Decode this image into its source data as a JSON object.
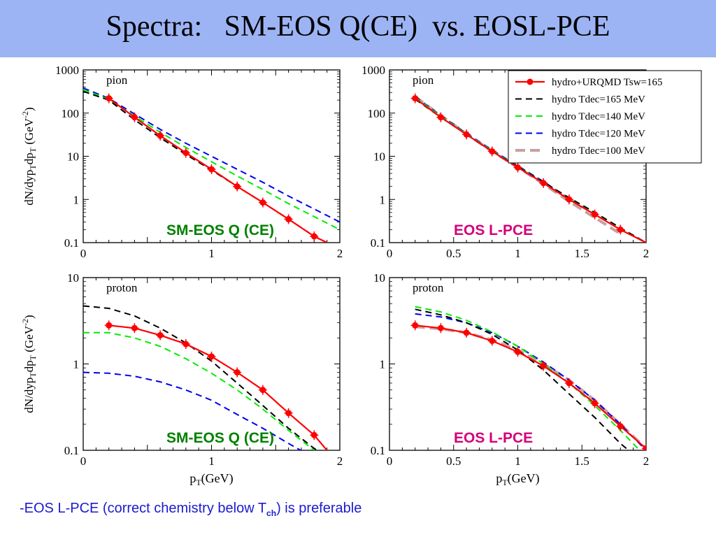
{
  "slide": {
    "title": "Spectra:   SM-EOS Q(CE)  vs. EOSL-PCE",
    "footer_prefix": "-EOS L-PCE (correct chemistry below T",
    "footer_sub": "ch",
    "footer_suffix": ") is preferable"
  },
  "colors": {
    "title_bg": "#9db4f4",
    "footer_text": "#1a1ad0",
    "sm_label": "#008000",
    "pce_label": "#d4007a",
    "hydro_urqmd": "#ff0000",
    "tdec165": "#000000",
    "tdec140": "#00ee00",
    "tdec120": "#0000ee",
    "tdec100": "#c8a0a0"
  },
  "legend": {
    "placement": "top-right",
    "entries": [
      "hydro+URQMD Tsw=165",
      "hydro Tdec=165 MeV",
      "hydro Tdec=140 MeV",
      "hydro Tdec=120 MeV",
      "hydro Tdec=100 MeV"
    ]
  },
  "chart_data": [
    {
      "type": "line",
      "id": "pion-smeos",
      "annotation": "pion",
      "label": "SM-EOS Q (CE)",
      "label_color": "sm",
      "ylabel": "dN/dyp_T dp_T (GeV^-2)",
      "xlabel": "",
      "xlim": [
        0,
        2
      ],
      "ylim": [
        0.1,
        1000
      ],
      "yscale": "log",
      "xticks": [
        "0",
        "1",
        "2"
      ],
      "yticks": [
        "0.1",
        "1",
        "10",
        "100",
        "1000"
      ],
      "series": [
        {
          "name": "hydro+URQMD Tsw=165",
          "style": "hydro_urqmd",
          "markers": true,
          "x": [
            0.2,
            0.4,
            0.6,
            0.8,
            1.0,
            1.2,
            1.4,
            1.6,
            1.8,
            1.9
          ],
          "y": [
            220,
            80,
            30,
            12,
            5,
            2,
            0.85,
            0.35,
            0.14,
            0.1
          ],
          "marker_x": [
            0.2,
            0.4,
            0.6,
            0.8,
            1.0,
            1.2,
            1.4,
            1.6,
            1.8
          ]
        },
        {
          "name": "hydro Tdec=165 MeV",
          "style": "tdec165",
          "x": [
            0,
            0.2,
            0.4,
            0.6,
            0.8,
            1.0,
            1.2,
            1.4,
            1.6,
            1.8,
            1.9
          ],
          "y": [
            320,
            200,
            70,
            27,
            11,
            4.8,
            2.0,
            0.85,
            0.35,
            0.14,
            0.1
          ]
        },
        {
          "name": "hydro Tdec=140 MeV",
          "style": "tdec140",
          "x": [
            0,
            0.2,
            0.4,
            0.6,
            0.8,
            1.0,
            1.2,
            1.4,
            1.6,
            1.8,
            2.0
          ],
          "y": [
            350,
            210,
            85,
            36,
            16,
            7.5,
            3.5,
            1.7,
            0.8,
            0.4,
            0.2
          ]
        },
        {
          "name": "hydro Tdec=120 MeV",
          "style": "tdec120",
          "x": [
            0,
            0.2,
            0.4,
            0.6,
            0.8,
            1.0,
            1.2,
            1.4,
            1.6,
            1.8,
            2.0
          ],
          "y": [
            380,
            220,
            95,
            42,
            20,
            10,
            5,
            2.5,
            1.2,
            0.6,
            0.3
          ]
        }
      ]
    },
    {
      "type": "line",
      "id": "pion-pce",
      "annotation": "pion",
      "label": "EOS L-PCE",
      "label_color": "pce",
      "ylabel": "",
      "xlabel": "",
      "xlim": [
        0,
        2
      ],
      "ylim": [
        0.1,
        1000
      ],
      "yscale": "log",
      "xticks": [
        "0",
        "0.5",
        "1",
        "1.5",
        "2"
      ],
      "yticks": [
        "0.1",
        "1",
        "10",
        "100",
        "1000"
      ],
      "legend": true,
      "series": [
        {
          "name": "hydro+URQMD Tsw=165",
          "style": "hydro_urqmd",
          "markers": true,
          "x": [
            0.2,
            0.4,
            0.6,
            0.8,
            1.0,
            1.2,
            1.4,
            1.6,
            1.8,
            2.0
          ],
          "y": [
            220,
            80,
            32,
            13,
            5.5,
            2.4,
            1.0,
            0.45,
            0.2,
            0.1
          ],
          "marker_x": [
            0.2,
            0.4,
            0.6,
            0.8,
            1.0,
            1.2,
            1.4,
            1.6,
            1.8
          ]
        },
        {
          "name": "hydro Tdec=165 MeV",
          "style": "tdec165",
          "x": [
            0.2,
            0.4,
            0.6,
            0.8,
            1.0,
            1.2,
            1.4,
            1.6,
            1.8,
            2.0
          ],
          "y": [
            210,
            80,
            32,
            13,
            5.7,
            2.5,
            1.1,
            0.5,
            0.22,
            0.1
          ]
        },
        {
          "name": "hydro Tdec=140 MeV",
          "style": "tdec140",
          "x": [
            0.2,
            0.4,
            0.6,
            0.8,
            1.0,
            1.2,
            1.4,
            1.6,
            1.8,
            2.0
          ],
          "y": [
            230,
            85,
            33,
            13.5,
            5.8,
            2.5,
            1.05,
            0.46,
            0.2,
            0.1
          ]
        },
        {
          "name": "hydro Tdec=120 MeV",
          "style": "tdec120",
          "x": [
            0.2,
            0.4,
            0.6,
            0.8,
            1.0,
            1.2,
            1.4,
            1.6,
            1.8,
            2.0
          ],
          "y": [
            240,
            88,
            34,
            14,
            6,
            2.6,
            1.05,
            0.45,
            0.2,
            0.1
          ]
        },
        {
          "name": "hydro Tdec=100 MeV",
          "style": "tdec100",
          "x": [
            0.2,
            0.4,
            0.6,
            0.8,
            1.0,
            1.2,
            1.4,
            1.6,
            1.8
          ],
          "y": [
            240,
            88,
            33,
            13,
            5.5,
            2.3,
            0.9,
            0.38,
            0.16
          ]
        }
      ]
    },
    {
      "type": "line",
      "id": "proton-smeos",
      "annotation": "proton",
      "label": "SM-EOS Q (CE)",
      "label_color": "sm",
      "ylabel": "dN/dyp_T dp_T (GeV^-2)",
      "xlabel": "p_T(GeV)",
      "xlim": [
        0,
        2
      ],
      "ylim": [
        0.1,
        10
      ],
      "yscale": "log",
      "xticks": [
        "0",
        "1",
        "2"
      ],
      "yticks": [
        "0.1",
        "1",
        "10"
      ],
      "series": [
        {
          "name": "hydro+URQMD Tsw=165",
          "style": "hydro_urqmd",
          "markers": true,
          "x": [
            0.2,
            0.4,
            0.6,
            0.8,
            1.0,
            1.2,
            1.4,
            1.6,
            1.8,
            1.9
          ],
          "y": [
            2.8,
            2.6,
            2.15,
            1.7,
            1.22,
            0.8,
            0.5,
            0.27,
            0.15,
            0.1
          ],
          "marker_x": [
            0.2,
            0.4,
            0.6,
            0.8,
            1.0,
            1.2,
            1.4,
            1.6,
            1.8
          ]
        },
        {
          "name": "hydro Tdec=165 MeV",
          "style": "tdec165",
          "x": [
            0,
            0.2,
            0.4,
            0.6,
            0.8,
            1.0,
            1.2,
            1.4,
            1.6,
            1.8,
            1.85
          ],
          "y": [
            4.7,
            4.4,
            3.6,
            2.6,
            1.75,
            1.08,
            0.6,
            0.33,
            0.18,
            0.105,
            0.095
          ]
        },
        {
          "name": "hydro Tdec=140 MeV",
          "style": "tdec140",
          "x": [
            0,
            0.2,
            0.4,
            0.6,
            0.8,
            1.0,
            1.2,
            1.4,
            1.6,
            1.8,
            1.85
          ],
          "y": [
            2.3,
            2.3,
            2.0,
            1.6,
            1.15,
            0.78,
            0.5,
            0.3,
            0.17,
            0.1,
            0.09
          ]
        },
        {
          "name": "hydro Tdec=120 MeV",
          "style": "tdec120",
          "x": [
            0,
            0.2,
            0.4,
            0.6,
            0.8,
            1.0,
            1.2,
            1.4,
            1.6,
            1.75
          ],
          "y": [
            0.8,
            0.78,
            0.72,
            0.62,
            0.5,
            0.38,
            0.26,
            0.18,
            0.12,
            0.09
          ]
        }
      ]
    },
    {
      "type": "line",
      "id": "proton-pce",
      "annotation": "proton",
      "label": "EOS L-PCE",
      "label_color": "pce",
      "ylabel": "",
      "xlabel": "p_T(GeV)",
      "xlim": [
        0,
        2
      ],
      "ylim": [
        0.1,
        10
      ],
      "yscale": "log",
      "xticks": [
        "0",
        "0.5",
        "1",
        "1.5",
        "2"
      ],
      "yticks": [
        "0.1",
        "1",
        "10"
      ],
      "series": [
        {
          "name": "hydro+URQMD Tsw=165",
          "style": "hydro_urqmd",
          "markers": true,
          "x": [
            0.2,
            0.4,
            0.6,
            0.8,
            1.0,
            1.2,
            1.4,
            1.6,
            1.8,
            2.0
          ],
          "y": [
            2.8,
            2.6,
            2.3,
            1.85,
            1.38,
            0.95,
            0.6,
            0.35,
            0.19,
            0.105
          ],
          "marker_x": [
            0.2,
            0.4,
            0.6,
            0.8,
            1.0,
            1.2,
            1.4,
            1.6,
            1.8,
            2.0
          ]
        },
        {
          "name": "hydro Tdec=165 MeV",
          "style": "tdec165",
          "x": [
            0.2,
            0.4,
            0.6,
            0.8,
            1.0,
            1.2,
            1.4,
            1.6,
            1.8,
            1.9
          ],
          "y": [
            4.3,
            3.7,
            3.0,
            2.2,
            1.45,
            0.85,
            0.45,
            0.24,
            0.12,
            0.09
          ]
        },
        {
          "name": "hydro Tdec=140 MeV",
          "style": "tdec140",
          "x": [
            0.2,
            0.4,
            0.6,
            0.8,
            1.0,
            1.2,
            1.4,
            1.6,
            1.8,
            1.95
          ],
          "y": [
            4.6,
            4.0,
            3.2,
            2.35,
            1.6,
            1.0,
            0.6,
            0.33,
            0.17,
            0.1
          ]
        },
        {
          "name": "hydro Tdec=120 MeV",
          "style": "tdec120",
          "x": [
            0.2,
            0.4,
            0.6,
            0.8,
            1.0,
            1.2,
            1.4,
            1.6,
            1.8,
            2.0
          ],
          "y": [
            3.8,
            3.5,
            3.0,
            2.3,
            1.6,
            1.05,
            0.65,
            0.38,
            0.2,
            0.1
          ]
        },
        {
          "name": "hydro Tdec=100 MeV",
          "style": "tdec100",
          "x": [
            0.2,
            0.4,
            0.6,
            0.8,
            1.0,
            1.2,
            1.4,
            1.6,
            1.8,
            2.0
          ],
          "y": [
            2.7,
            2.55,
            2.3,
            1.9,
            1.45,
            1.0,
            0.65,
            0.38,
            0.2,
            0.105
          ]
        }
      ]
    }
  ]
}
